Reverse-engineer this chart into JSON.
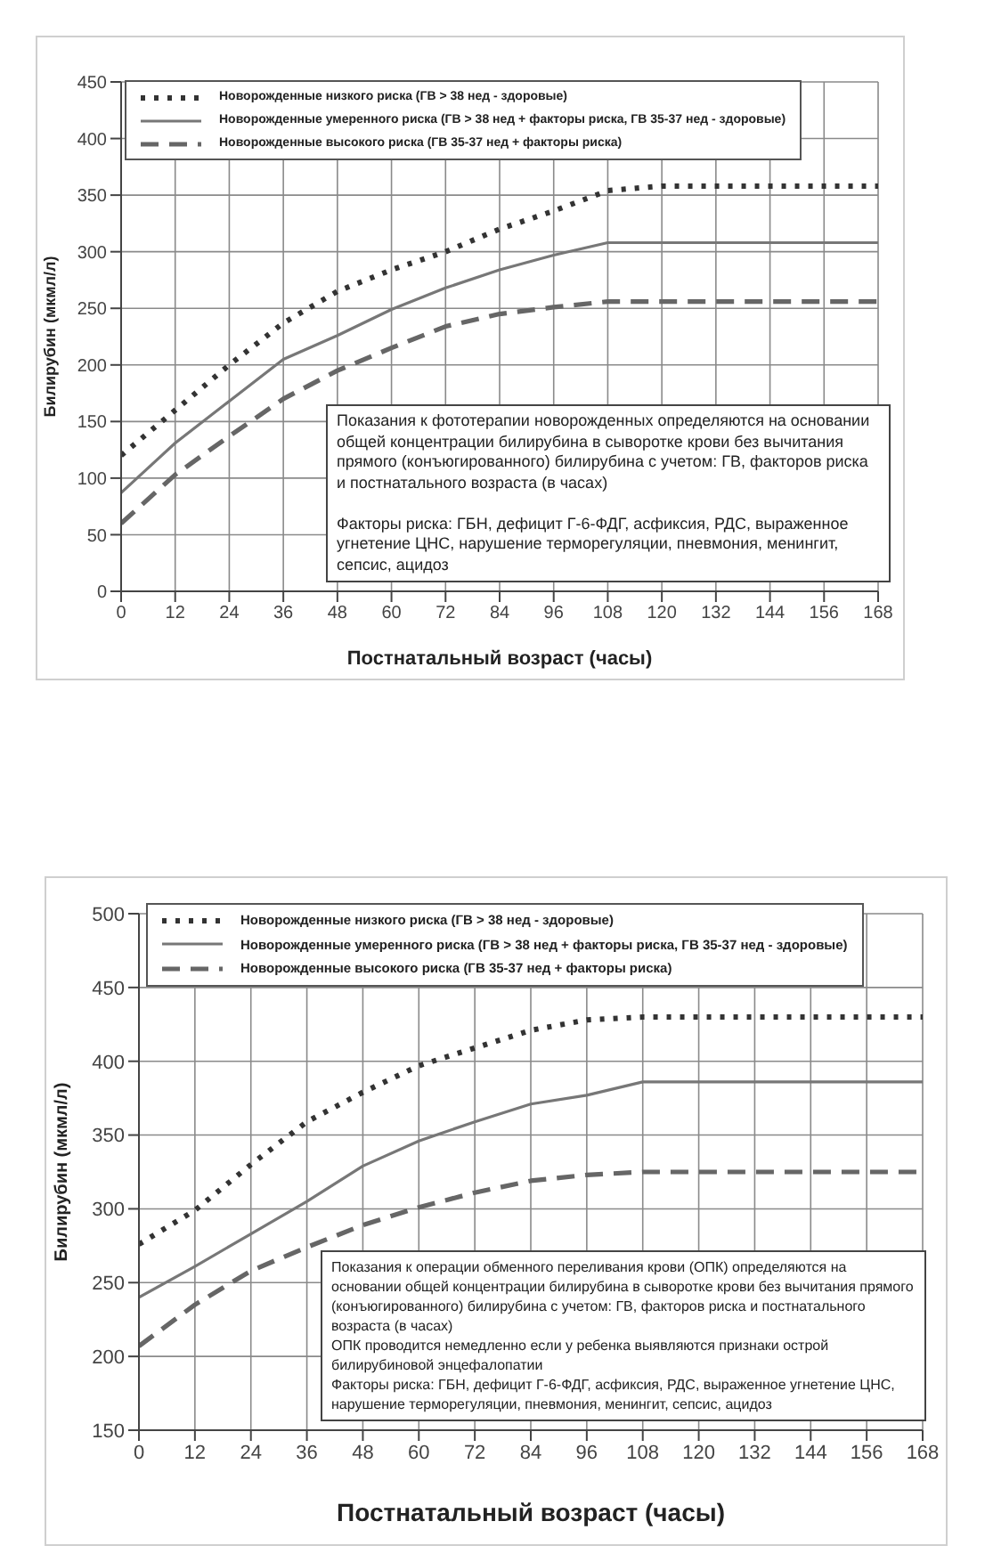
{
  "chart_data": [
    {
      "type": "line",
      "xlabel": "Постнатальный возраст (часы)",
      "ylabel": "Билирубин (мкмл/л)",
      "x": [
        0,
        12,
        24,
        36,
        48,
        60,
        72,
        84,
        96,
        108,
        120,
        132,
        144,
        156,
        168
      ],
      "series": [
        {
          "name": "Новорожденные низкого риска (ГВ > 38 нед - здоровые)",
          "color": "#333333",
          "line_style": "dotted",
          "values": [
            120,
            160,
            200,
            237,
            265,
            284,
            300,
            320,
            336,
            354,
            358,
            358,
            358,
            358,
            358
          ]
        },
        {
          "name": "Новорожденные умеренного риска (ГВ > 38 нед + факторы риска, ГВ 35-37 нед - здоровые)",
          "color": "#777777",
          "line_style": "solid",
          "values": [
            87,
            131,
            168,
            205,
            226,
            249,
            268,
            284,
            297,
            308,
            308,
            308,
            308,
            308,
            308
          ]
        },
        {
          "name": "Новорожденные высокого риска (ГВ 35-37 нед + факторы риска)",
          "color": "#666666",
          "line_style": "dashed",
          "values": [
            60,
            103,
            137,
            170,
            195,
            215,
            234,
            245,
            251,
            256,
            256,
            256,
            256,
            256,
            256
          ]
        }
      ],
      "xlim": [
        0,
        168
      ],
      "xticks": [
        0,
        12,
        24,
        36,
        48,
        60,
        72,
        84,
        96,
        108,
        120,
        132,
        144,
        156,
        168
      ],
      "ylim": [
        0,
        450
      ],
      "yticks": [
        0,
        50,
        100,
        150,
        200,
        250,
        300,
        350,
        400,
        450
      ],
      "grid": true,
      "legend": "top left",
      "annotations": [
        "Показания к фототерапии новорожденных определяются на основании общей концентрации билирубина в сыворотке крови без вычитания прямого (конъюгированного) билирубина с учетом: ГВ, факторов риска и постнатального возраста (в часах)",
        "Факторы риска: ГБН, дефицит Г-6-ФДГ, асфиксия, РДС, выраженное угнетение ЦНС, нарушение терморегуляции, пневмония, менингит, сепсис, ацидоз"
      ]
    },
    {
      "type": "line",
      "xlabel": "Постнатальный возраст (часы)",
      "ylabel": "Билирубин (мкмл/л)",
      "x": [
        0,
        12,
        24,
        36,
        48,
        60,
        72,
        84,
        96,
        108,
        120,
        132,
        144,
        156,
        168
      ],
      "series": [
        {
          "name": "Новорожденные низкого риска (ГВ > 38 нед - здоровые)",
          "color": "#333333",
          "line_style": "dotted",
          "values": [
            276,
            299,
            330,
            359,
            379,
            397,
            409,
            421,
            428,
            430,
            430,
            430,
            430,
            430,
            430
          ]
        },
        {
          "name": "Новорожденные умеренного риска (ГВ > 38 нед + факторы риска, ГВ 35-37 нед - здоровые)",
          "color": "#777777",
          "line_style": "solid",
          "values": [
            240,
            261,
            283,
            305,
            329,
            346,
            359,
            371,
            377,
            386,
            386,
            386,
            386,
            386,
            386
          ]
        },
        {
          "name": "Новорожденные высокого риска (ГВ 35-37 нед + факторы риска)",
          "color": "#666666",
          "line_style": "dashed",
          "values": [
            207,
            235,
            258,
            274,
            289,
            301,
            311,
            319,
            323,
            325,
            325,
            325,
            325,
            325,
            325
          ]
        }
      ],
      "xlim": [
        0,
        168
      ],
      "xticks": [
        0,
        12,
        24,
        36,
        48,
        60,
        72,
        84,
        96,
        108,
        120,
        132,
        144,
        156,
        168
      ],
      "ylim": [
        150,
        500
      ],
      "yticks": [
        150,
        200,
        250,
        300,
        350,
        400,
        450,
        500
      ],
      "grid": true,
      "legend": "top left",
      "annotations": [
        "Показания к операции обменного переливания крови (ОПК) определяются на основании общей концентрации билирубина в сыворотке крови без вычитания прямого (конъюгированного) билирубина с учетом: ГВ, факторов риска и постнатального возраста (в часах)",
        "ОПК проводится немедленно если у ребенка выявляются признаки острой билирубиновой энцефалопатии",
        "Факторы риска: ГБН, дефицит Г-6-ФДГ, асфиксия, РДС, выраженное угнетение ЦНС, нарушение терморегуляции, пневмония, менингит, сепсис, ацидоз"
      ]
    }
  ]
}
